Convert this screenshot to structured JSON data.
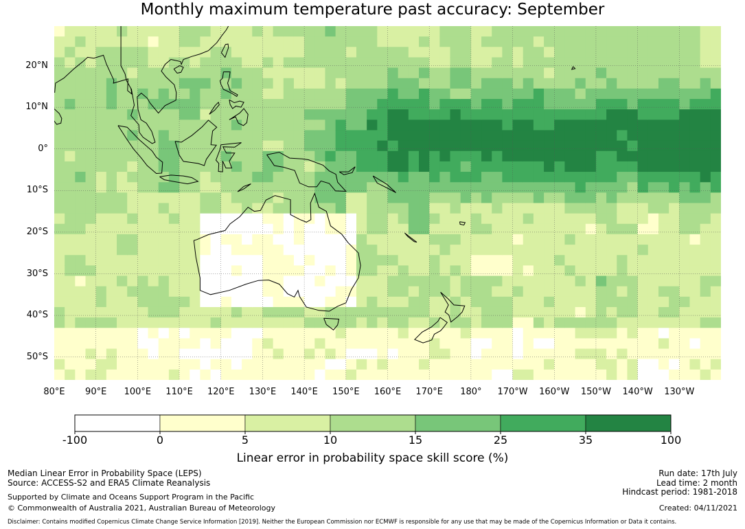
{
  "title": "Monthly maximum temperature past accuracy: September",
  "map": {
    "lat_labels": [
      "20°N",
      "10°N",
      "0°",
      "10°S",
      "20°S",
      "30°S",
      "40°S",
      "50°S"
    ],
    "lon_labels": [
      "80°E",
      "90°E",
      "100°E",
      "110°E",
      "120°E",
      "130°E",
      "140°E",
      "150°E",
      "160°E",
      "170°E",
      "180°",
      "170°W",
      "160°W",
      "150°W",
      "140°W",
      "130°W"
    ],
    "extent": {
      "lon_min": 80,
      "lon_max": 240,
      "lat_min": -55.5,
      "lat_max": 29.5
    },
    "landmasses": [
      "Australia",
      "New Zealand",
      "Papua New Guinea",
      "Indonesia",
      "Philippines",
      "Malaysia",
      "Borneo"
    ]
  },
  "colorbar": {
    "ticks": [
      "-100",
      "0",
      "5",
      "10",
      "15",
      "25",
      "35",
      "100"
    ],
    "colors": [
      "#ffffff",
      "#ffffcc",
      "#d9f0a3",
      "#addd8e",
      "#78c679",
      "#41ab5d",
      "#238443"
    ],
    "label": "Linear error in probability space skill score (%)"
  },
  "footer": {
    "left_line1": "Median Linear Error in Probability Space (LEPS)",
    "left_line2": "Source: ACCESS-S2 and ERA5 Climate Reanalysis",
    "left_line3": "Supported by Climate and Oceans Support Program in the Pacific",
    "left_line4": "© Commonwealth of Australia 2021, Australian Bureau of Meteorology",
    "run_date": "Run date: 17th July",
    "lead_time": "Lead time: 2 month",
    "hindcast": "Hindcast period: 1981-2018",
    "created": "Created: 04/11/2021",
    "disclaimer": "Disclaimer: Contains modified Copernicus Climate Change Service Information [2019]. Neither the European Commission nor ECMWF is responsible for any use that may be made of the Copernicus Information or Data it contains."
  }
}
